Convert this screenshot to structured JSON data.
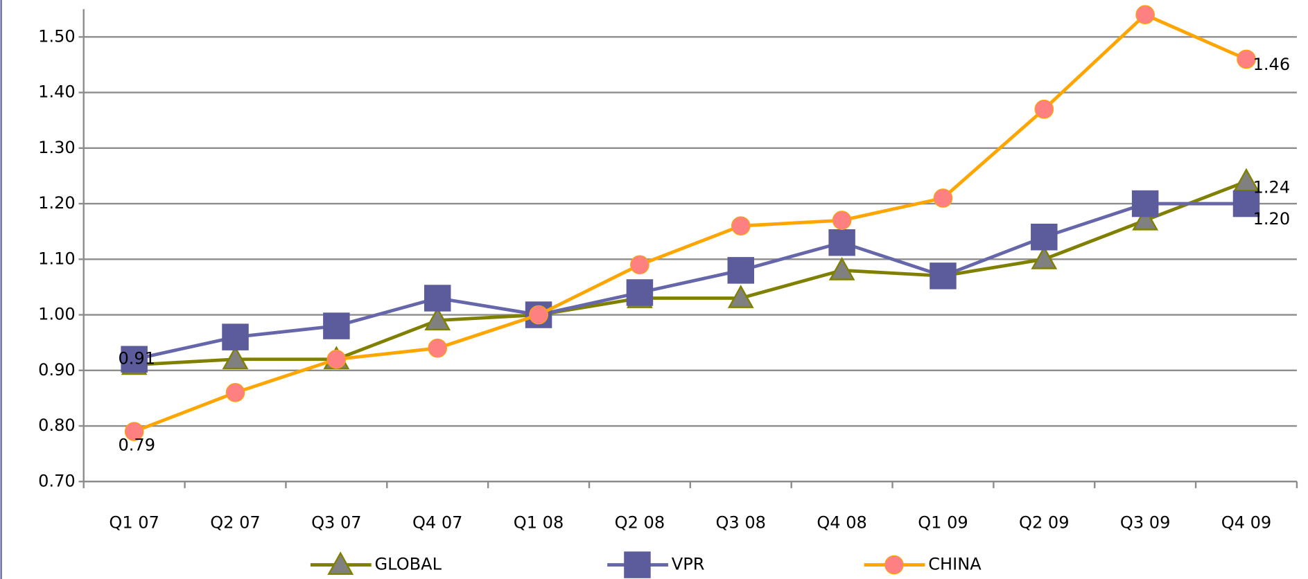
{
  "chart_data": {
    "type": "line",
    "categories": [
      "Q1 07",
      "Q2 07",
      "Q3 07",
      "Q4 07",
      "Q1 08",
      "Q2 08",
      "Q3 08",
      "Q4 08",
      "Q1 09",
      "Q2 09",
      "Q3 09",
      "Q4 09"
    ],
    "series": [
      {
        "name": "GLOBAL",
        "color": "#808000",
        "marker": "triangle",
        "marker_color": "#808080",
        "values": [
          0.91,
          0.92,
          0.92,
          0.99,
          1.0,
          1.03,
          1.03,
          1.08,
          1.07,
          1.1,
          1.17,
          1.24
        ],
        "value_labels": [
          "0.91",
          null,
          null,
          null,
          null,
          null,
          null,
          null,
          null,
          null,
          null,
          "1.24"
        ]
      },
      {
        "name": "VPR",
        "color": "#6666aa",
        "marker": "square",
        "marker_color": "#5c5c9c",
        "values": [
          0.92,
          0.96,
          0.98,
          1.03,
          1.0,
          1.04,
          1.08,
          1.13,
          1.07,
          1.14,
          1.2,
          1.2
        ],
        "value_labels": [
          null,
          null,
          null,
          null,
          null,
          null,
          null,
          null,
          null,
          null,
          null,
          "1.20"
        ]
      },
      {
        "name": "CHINA",
        "color": "#ffa500",
        "marker": "circle",
        "marker_color": "#ff8080",
        "values": [
          0.79,
          0.86,
          0.92,
          0.94,
          1.0,
          1.09,
          1.16,
          1.17,
          1.21,
          1.37,
          1.54,
          1.46
        ],
        "value_labels": [
          "0.79",
          null,
          null,
          null,
          null,
          null,
          null,
          null,
          null,
          null,
          null,
          "1.46"
        ]
      }
    ],
    "ylim": [
      0.7,
      1.55
    ],
    "yticks": [
      {
        "value": 0.7,
        "label": "0.70"
      },
      {
        "value": 0.8,
        "label": "0.80"
      },
      {
        "value": 0.9,
        "label": "0.90"
      },
      {
        "value": 1.0,
        "label": "1.00"
      },
      {
        "value": 1.1,
        "label": "1.10"
      },
      {
        "value": 1.2,
        "label": "1.20"
      },
      {
        "value": 1.3,
        "label": "1.30"
      },
      {
        "value": 1.4,
        "label": "1.40"
      },
      {
        "value": 1.5,
        "label": "1.50"
      }
    ],
    "grid": true,
    "legend": "bottom"
  }
}
